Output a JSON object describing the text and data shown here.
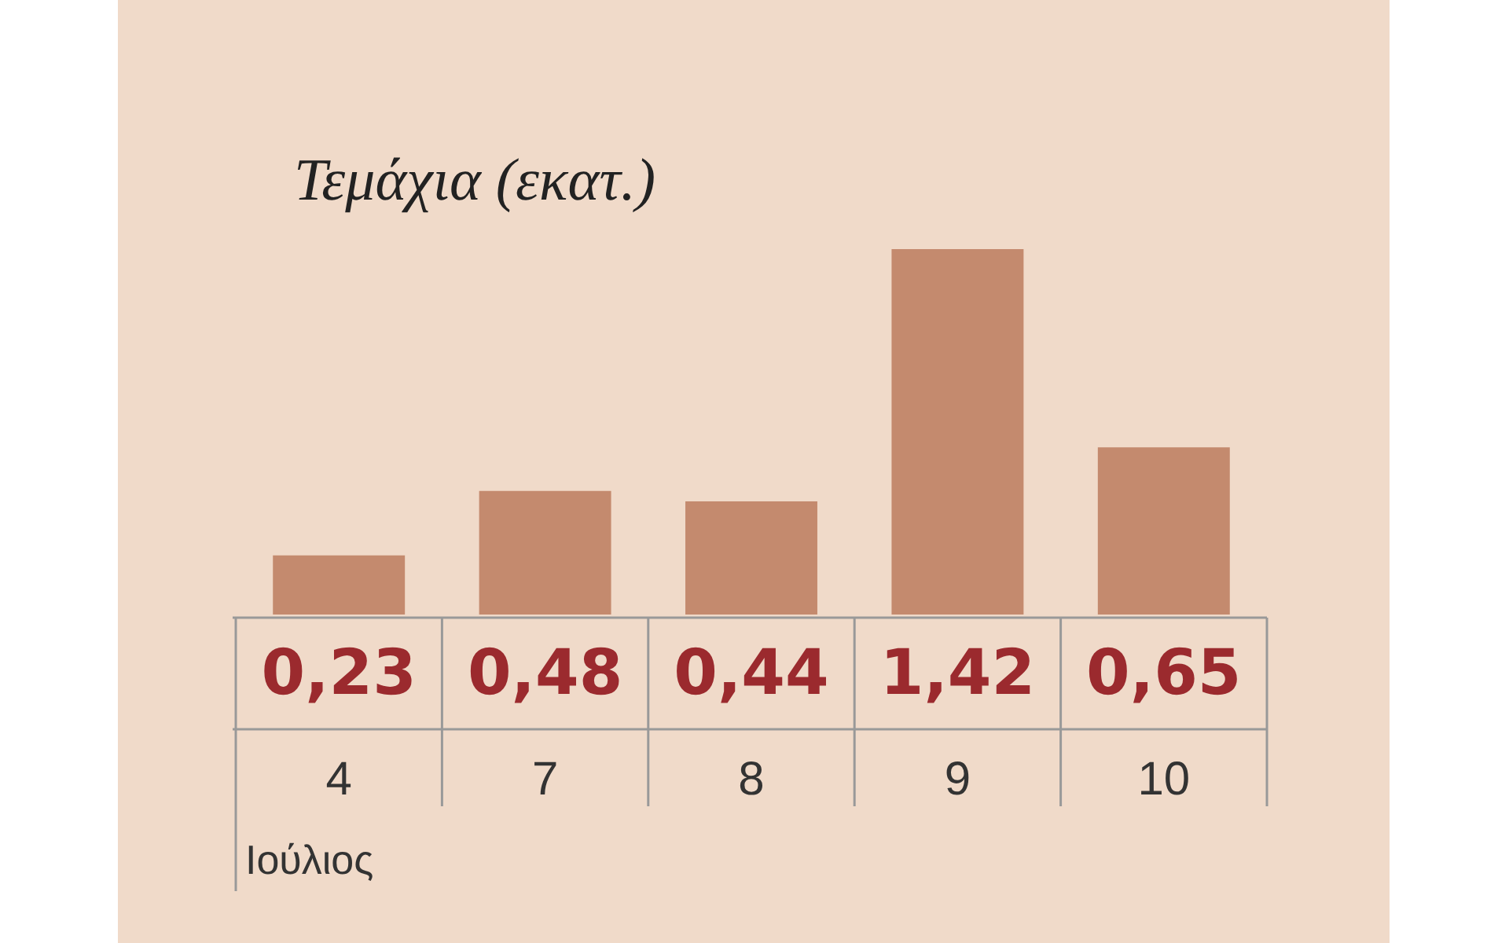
{
  "chart_data": {
    "type": "bar",
    "title": "Τεμάχια (εκατ.)",
    "xlabel": "Ιούλιος",
    "categories": [
      "4",
      "7",
      "8",
      "9",
      "10"
    ],
    "values": [
      0.23,
      0.48,
      0.44,
      1.42,
      0.65
    ],
    "value_labels": [
      "0,23",
      "0,48",
      "0,44",
      "1,42",
      "0,65"
    ],
    "color": "#c48a6e"
  }
}
